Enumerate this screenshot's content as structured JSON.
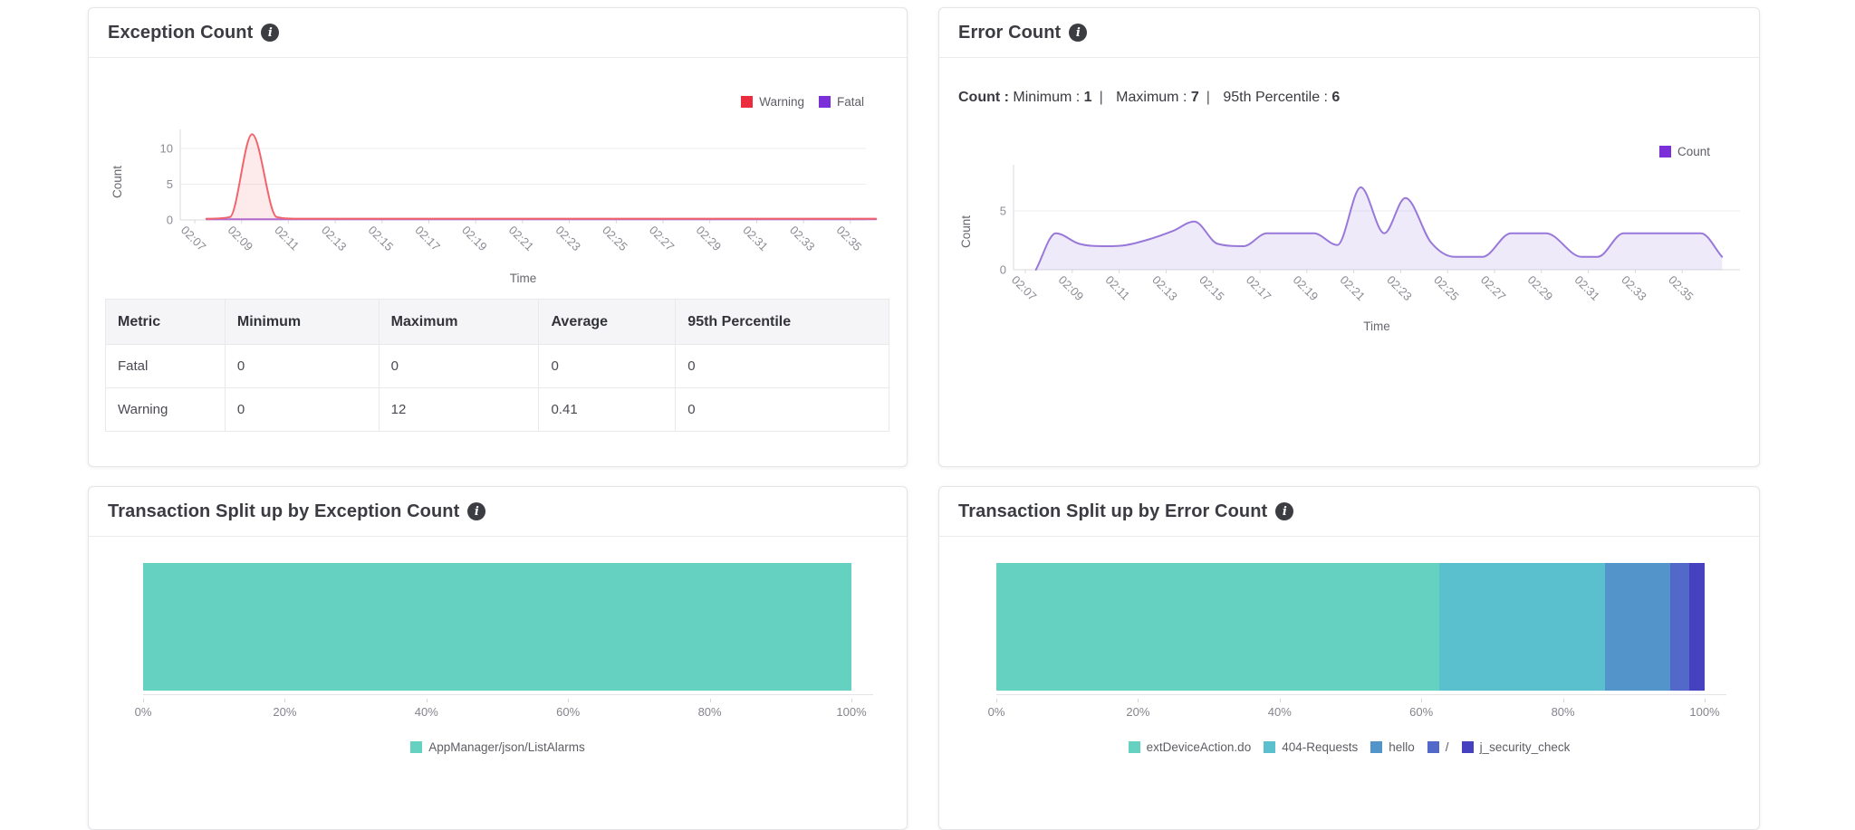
{
  "chart_data": [
    {
      "id": "exception_count",
      "type": "line",
      "title": "Exception Count",
      "xlabel": "Time",
      "ylabel": "Count",
      "grid": true,
      "legend_position": "top-right",
      "ylim": [
        0,
        12.6
      ],
      "yticks": [
        0,
        5,
        10
      ],
      "x_tick_labels": [
        "02:07",
        "02:09",
        "02:11",
        "02:13",
        "02:15",
        "02:17",
        "02:19",
        "02:21",
        "02:23",
        "02:25",
        "02:27",
        "02:29",
        "02:31",
        "02:33",
        "02:35"
      ],
      "legend": [
        {
          "label": "Warning",
          "color": "#ea2c3e"
        },
        {
          "label": "Fatal",
          "color": "#7a2fd8"
        }
      ],
      "series": [
        {
          "name": "Fatal",
          "line_color": "#aa6ad9",
          "fill_color": "none",
          "points_minute_value": [
            [
              7.5,
              0.1
            ],
            [
              36.1,
              0.1
            ]
          ]
        },
        {
          "name": "Warning",
          "line_color": "#f2646c",
          "fill_color": "rgba(242,100,108,0.13)",
          "points_minute_value": [
            [
              7.5,
              0.18
            ],
            [
              8.5,
              0.4
            ],
            [
              9.45,
              12
            ],
            [
              10.5,
              0.4
            ],
            [
              11.4,
              0.18
            ],
            [
              36.1,
              0.18
            ]
          ]
        }
      ],
      "summary_table": {
        "columns": [
          "Metric",
          "Minimum",
          "Maximum",
          "Average",
          "95th Percentile"
        ],
        "rows": [
          [
            "Fatal",
            "0",
            "0",
            "0",
            "0"
          ],
          [
            "Warning",
            "0",
            "12",
            "0.41",
            "0"
          ]
        ]
      }
    },
    {
      "id": "error_count",
      "type": "line",
      "title": "Error Count",
      "xlabel": "Time",
      "ylabel": "Count",
      "grid": true,
      "legend_position": "top-right",
      "ylim": [
        0,
        8
      ],
      "yticks": [
        0,
        5
      ],
      "x_tick_labels": [
        "02:07",
        "02:09",
        "02:11",
        "02:13",
        "02:15",
        "02:17",
        "02:19",
        "02:21",
        "02:23",
        "02:25",
        "02:27",
        "02:29",
        "02:31",
        "02:33",
        "02:35"
      ],
      "stats_line": {
        "prefix": "Count :",
        "metrics": [
          {
            "label": "Minimum :",
            "value": "1"
          },
          {
            "label": "Maximum :",
            "value": "7"
          },
          {
            "label": "95th Percentile :",
            "value": "6"
          }
        ]
      },
      "legend": [
        {
          "label": "Count",
          "color": "#7a2fd8"
        }
      ],
      "series": [
        {
          "name": "Count",
          "line_color": "#9878d8",
          "fill_color": "rgba(146,115,220,0.15)",
          "points_minute_value": [
            [
              7.45,
              0
            ],
            [
              8.3,
              3.1
            ],
            [
              9.3,
              2.2
            ],
            [
              10.4,
              2.0
            ],
            [
              11.3,
              2.1
            ],
            [
              12.3,
              2.6
            ],
            [
              13.3,
              3.3
            ],
            [
              14.2,
              4.1
            ],
            [
              15.2,
              2.2
            ],
            [
              16.3,
              2.0
            ],
            [
              17.3,
              3.1
            ],
            [
              18.3,
              3.1
            ],
            [
              19.3,
              3.1
            ],
            [
              20.3,
              2.1
            ],
            [
              21.3,
              7.0
            ],
            [
              22.3,
              3.1
            ],
            [
              23.2,
              6.1
            ],
            [
              24.3,
              2.3
            ],
            [
              25.3,
              1.1
            ],
            [
              26.5,
              1.1
            ],
            [
              27.7,
              3.1
            ],
            [
              29.2,
              3.1
            ],
            [
              30.7,
              1.1
            ],
            [
              31.4,
              1.1
            ],
            [
              32.5,
              3.1
            ],
            [
              34.0,
              3.1
            ],
            [
              35.8,
              3.1
            ],
            [
              36.7,
              1.1
            ]
          ]
        }
      ]
    },
    {
      "id": "txn_split_exception",
      "type": "bar",
      "title": "Transaction Split up by Exception Count",
      "orientation": "horizontal-stacked-100",
      "xlim": [
        0,
        100
      ],
      "x_tick_labels": [
        "0%",
        "20%",
        "40%",
        "60%",
        "80%",
        "100%"
      ],
      "segments": [
        {
          "label": "AppManager/json/ListAlarms",
          "value": 100,
          "color": "#65d1c1"
        }
      ]
    },
    {
      "id": "txn_split_error",
      "type": "bar",
      "title": "Transaction Split up by Error Count",
      "orientation": "horizontal-stacked-100",
      "xlim": [
        0,
        100
      ],
      "x_tick_labels": [
        "0%",
        "20%",
        "40%",
        "60%",
        "80%",
        "100%"
      ],
      "segments": [
        {
          "label": "extDeviceAction.do",
          "value": 62.5,
          "color": "#65d1c1"
        },
        {
          "label": "404-Requests",
          "value": 23.4,
          "color": "#5ac0ce"
        },
        {
          "label": "hello",
          "value": 9.3,
          "color": "#5394ca"
        },
        {
          "label": "/",
          "value": 2.6,
          "color": "#5269ca"
        },
        {
          "label": "j_security_check",
          "value": 2.2,
          "color": "#4642bf"
        }
      ]
    }
  ]
}
